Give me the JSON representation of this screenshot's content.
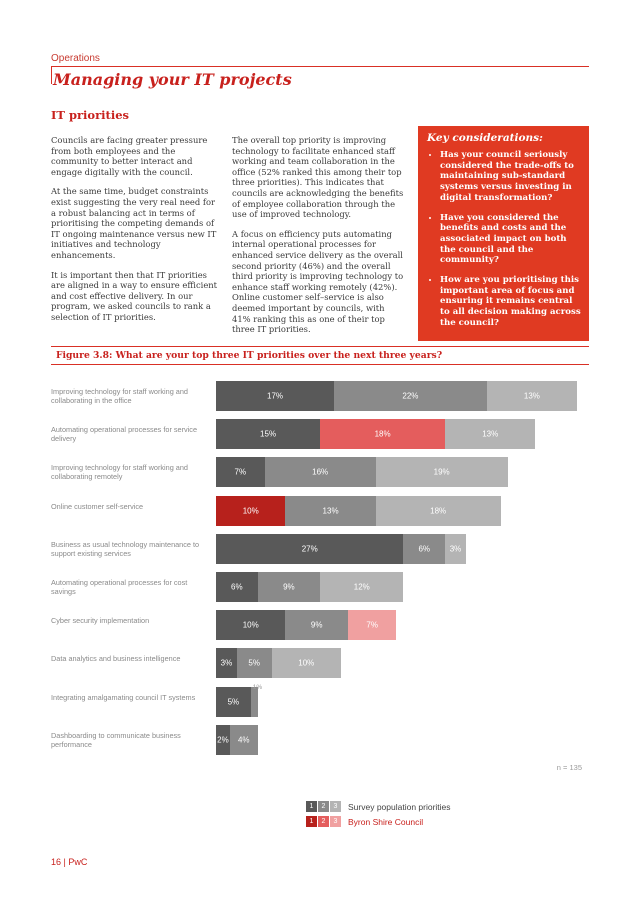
{
  "header": {
    "section": "Operations",
    "title": "Managing your IT projects",
    "subtitle": "IT priorities"
  },
  "body": {
    "col1": [
      "Councils are facing greater pressure from both employees and the community to better interact and engage digitally with the council.",
      "At the same time, budget constraints exist suggesting the very real need for a robust balancing act in terms of prioritising the competing demands of IT ongoing maintenance versus new IT initiatives and technology enhancements.",
      "It is important then that IT priorities are aligned in a way to ensure efficient and cost effective delivery. In our program, we asked councils to rank a selection of IT priorities."
    ],
    "col2": [
      "The overall top priority is improving technology to facilitate enhanced staff working and team collaboration in the office (52% ranked this among their top three priorities). This indicates that councils are acknowledging the benefits of employee collaboration through the use of improved technology.",
      "A focus on efficiency puts automating internal operational processes for enhanced service delivery as the overall second priority (46%) and the overall third priority is improving technology to enhance staff working remotely (42%). Online customer self–service is also deemed important by councils, with 41% ranking this as one of their top three IT priorities."
    ]
  },
  "key": {
    "title": "Key considerations:",
    "items": [
      "Has your council seriously considered the trade-offs to maintaining sub-standard systems versus investing in digital transformation?",
      "Have you considered the benefits and costs and the associated impact on both the council and the community?",
      "How are you prioritising this important area of focus and ensuring it remains central to all decision making across the council?"
    ]
  },
  "figure": {
    "title": "Figure 3.8: What are your top three IT priorities over the next three years?",
    "n_note": "n = 135"
  },
  "colors": {
    "grey1": "#595959",
    "grey2": "#8a8a8a",
    "grey3": "#b4b4b4",
    "red1": "#b7211c",
    "red2": "#e45d5d",
    "red3": "#f0a0a0"
  },
  "chart_data": {
    "type": "bar",
    "orientation": "horizontal-stacked",
    "title": "Figure 3.8: What are your top three IT priorities over the next three years?",
    "xlim": [
      0,
      52
    ],
    "categories": [
      "Improving technology for staff working and collaborating in the office",
      "Automating operational processes for service delivery",
      "Improving technology for staff working and collaborating remotely",
      "Online customer self-service",
      "Business as usual technology maintenance to support existing services",
      "Automating operational processes for cost savings",
      "Cyber security implementation",
      "Data analytics and business intelligence",
      "Integrating amalgamating council IT systems",
      "Dashboarding to communicate business performance"
    ],
    "series": [
      {
        "name": "1",
        "values": [
          17,
          15,
          7,
          10,
          27,
          6,
          10,
          3,
          5,
          2
        ]
      },
      {
        "name": "2",
        "values": [
          22,
          18,
          16,
          13,
          6,
          9,
          9,
          5,
          1,
          4
        ]
      },
      {
        "name": "3",
        "values": [
          13,
          13,
          19,
          18,
          3,
          12,
          7,
          10,
          0,
          0
        ]
      }
    ],
    "value_labels": [
      [
        "17%",
        "22%",
        "13%"
      ],
      [
        "15%",
        "18%",
        "13%"
      ],
      [
        "7%",
        "16%",
        "19%"
      ],
      [
        "10%",
        "13%",
        "18%"
      ],
      [
        "27%",
        "6%",
        "3%"
      ],
      [
        "6%",
        "9%",
        "12%"
      ],
      [
        "10%",
        "9%",
        "7%"
      ],
      [
        "3%",
        "5%",
        "10%"
      ],
      [
        "5%",
        "1%",
        ""
      ],
      [
        "2%",
        "4%",
        ""
      ]
    ],
    "highlight": [
      [
        "grey",
        "grey",
        "grey"
      ],
      [
        "grey",
        "red",
        "grey"
      ],
      [
        "grey",
        "grey",
        "grey"
      ],
      [
        "red",
        "grey",
        "grey"
      ],
      [
        "grey",
        "grey",
        "grey"
      ],
      [
        "grey",
        "grey",
        "grey"
      ],
      [
        "grey",
        "grey",
        "red"
      ],
      [
        "grey",
        "grey",
        "grey"
      ],
      [
        "grey",
        "grey",
        "grey"
      ],
      [
        "grey",
        "grey",
        "grey"
      ]
    ],
    "legend": [
      {
        "label": "Survey population priorities",
        "boxes": [
          "1",
          "2",
          "3"
        ]
      },
      {
        "label": "Byron Shire Council",
        "boxes": [
          "1",
          "2",
          "3"
        ]
      }
    ]
  },
  "footer": "16 | PwC"
}
